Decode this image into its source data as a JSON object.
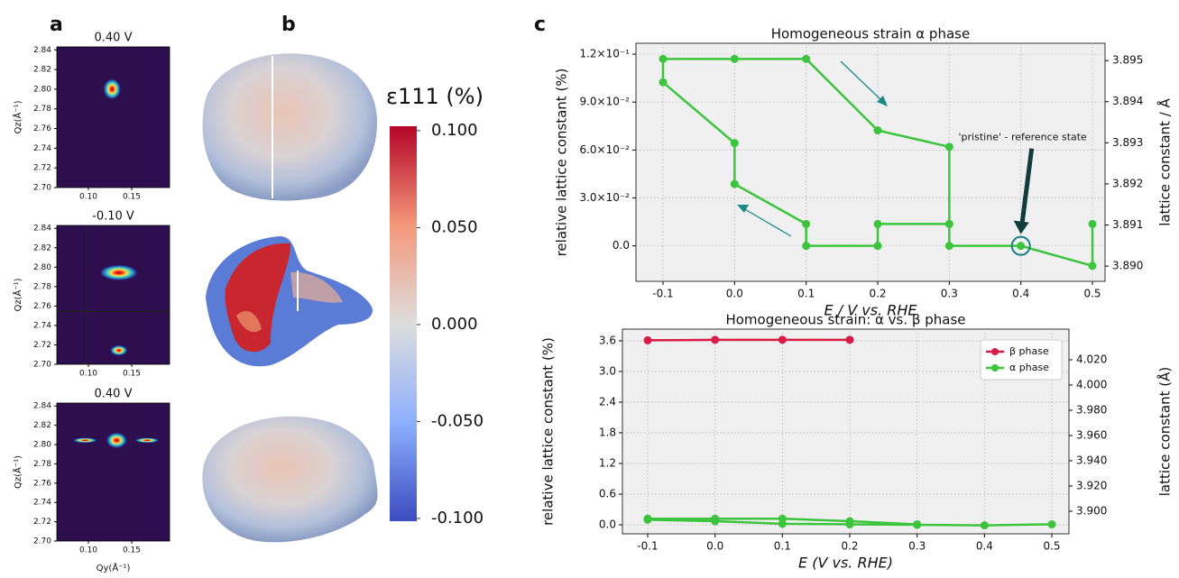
{
  "panel_labels": [
    "a",
    "b",
    "c"
  ],
  "chart_data": [
    {
      "type": "image",
      "title": "0.40 V",
      "ylabel": "Qz(Å⁻¹)",
      "xlim": [
        0.0635,
        0.1938
      ],
      "ylim": [
        2.7,
        2.843
      ],
      "xticks": [
        {
          "value": 0.1,
          "label": "0.10"
        },
        {
          "value": 0.15,
          "label": "0.15"
        }
      ],
      "yticks": [
        {
          "value": 2.7,
          "label": "2.70"
        },
        2.72,
        2.74,
        2.76,
        2.78,
        {
          "value": 2.8,
          "label": "2.80"
        },
        2.82,
        2.84
      ]
    },
    {
      "type": "image",
      "title": "-0.10 V",
      "ylabel": "Qz(Å⁻¹)",
      "xlim": [
        0.0635,
        0.1938
      ],
      "ylim": [
        2.7,
        2.843
      ],
      "xticks": [
        {
          "value": 0.1,
          "label": "0.10"
        },
        {
          "value": 0.15,
          "label": "0.15"
        }
      ],
      "yticks": [
        {
          "value": 2.7,
          "label": "2.70"
        },
        2.72,
        2.74,
        2.76,
        2.78,
        {
          "value": 2.8,
          "label": "2.80"
        },
        2.82,
        2.84
      ]
    },
    {
      "type": "image",
      "title": "0.40 V",
      "ylabel": "Qz(Å⁻¹)",
      "xlabel": "Qy(Å⁻¹)",
      "xlim": [
        0.0635,
        0.1938
      ],
      "ylim": [
        2.7,
        2.843
      ],
      "xticks": [
        {
          "value": 0.1,
          "label": "0.10"
        },
        {
          "value": 0.15,
          "label": "0.15"
        }
      ],
      "yticks": [
        {
          "value": 2.7,
          "label": "2.70"
        },
        2.72,
        2.74,
        2.76,
        2.78,
        {
          "value": 2.8,
          "label": "2.80"
        },
        2.82,
        2.84
      ]
    },
    {
      "type": "colorbar",
      "label": "ε111 (%)",
      "colormap": "coolwarm",
      "lim": [
        -0.1014,
        0.1023
      ],
      "ticks": [
        {
          "value": 0.1,
          "label": "0.100"
        },
        {
          "value": 0.05,
          "label": "0.050"
        },
        {
          "value": 0,
          "label": "0.000"
        },
        {
          "value": -0.05,
          "label": "-0.050"
        },
        {
          "value": -0.1,
          "label": "-0.100"
        }
      ]
    },
    {
      "type": "line",
      "title": "Homogeneous strain α phase",
      "xlabel": "E / V vs. RHE",
      "ylabel": "relative lattice constant (%)",
      "y2label": "lattice constant / Å",
      "annotation": "'pristine' - reference state",
      "grid": true,
      "xlim": [
        -0.1378,
        0.5176
      ],
      "ylim": [
        -0.0222,
        0.1268
      ],
      "y2lim": [
        3.88963,
        3.89542
      ],
      "xticks": [
        -0.1,
        {
          "value": 0,
          "label": "0.0"
        },
        0.1,
        0.2,
        0.3,
        0.4,
        0.5
      ],
      "yticks": [
        {
          "value": 0,
          "label": "0.0"
        },
        {
          "value": 0.03,
          "label": "3.0×10⁻²"
        },
        {
          "value": 0.06,
          "label": "6.0×10⁻²"
        },
        {
          "value": 0.09,
          "label": "9.0×10⁻²"
        },
        {
          "value": 0.12,
          "label": "1.2×10⁻¹"
        }
      ],
      "y2ticks": [
        {
          "value": 3.89,
          "label": "3.890"
        },
        3.891,
        3.892,
        3.893,
        3.894,
        3.895
      ],
      "series": [
        {
          "color": "#3cc43c",
          "x": [
            0.5,
            0.5,
            0.4,
            0.3,
            0.3,
            0.3,
            0.2,
            0.1,
            0.0,
            -0.1,
            -0.1,
            0.0,
            0.0,
            0.1,
            0.1,
            0.2,
            0.2,
            0.3
          ],
          "values": [
            0.0137,
            -0.0125,
            0,
            0,
            0.0137,
            0.062,
            0.0723,
            0.117,
            0.117,
            0.117,
            0.1024,
            0.0643,
            0.0387,
            0.0137,
            0,
            0,
            0.0137,
            0.0137
          ]
        }
      ]
    },
    {
      "type": "line",
      "title": "Homogeneous strain: α vs. β phase",
      "xlabel": "E (V vs. RHE)",
      "ylabel": "relative lattice constant (%)",
      "y2label": "lattice constant (Å)",
      "legend": "upper right",
      "grid": true,
      "xlim": [
        -0.1375,
        0.5254
      ],
      "ylim": [
        -0.176,
        3.829
      ],
      "y2lim": [
        3.8821,
        4.0443
      ],
      "xticks": [
        -0.1,
        {
          "value": 0,
          "label": "0.0"
        },
        0.1,
        0.2,
        0.3,
        0.4,
        0.5
      ],
      "yticks": [
        {
          "value": 0,
          "label": "0.0"
        },
        0.6,
        1.2,
        1.8,
        2.4,
        {
          "value": 3,
          "label": "3.0"
        },
        3.6
      ],
      "y2ticks": [
        {
          "value": 3.9,
          "label": "3.900"
        },
        {
          "value": 3.92,
          "label": "3.920"
        },
        {
          "value": 3.94,
          "label": "3.940"
        },
        {
          "value": 3.96,
          "label": "3.960"
        },
        {
          "value": 3.98,
          "label": "3.980"
        },
        {
          "value": 4,
          "label": "4.000"
        },
        {
          "value": 4.02,
          "label": "4.020"
        }
      ],
      "series": [
        {
          "name": "β phase",
          "color": "#d81b47",
          "x": [
            -0.1,
            0.0,
            0.1,
            0.2
          ],
          "values": [
            3.61,
            3.62,
            3.62,
            3.62
          ]
        },
        {
          "name": "α phase",
          "color": "#3cc43c",
          "x": [
            0.3,
            0.2,
            0.1,
            0.0,
            -0.1,
            -0.1,
            0.0,
            0.1,
            0.2,
            0.3,
            0.4,
            0.5
          ],
          "values": [
            0.01,
            0.07,
            0.12,
            0.12,
            0.12,
            0.1,
            0.07,
            0.02,
            0.01,
            0.0,
            -0.01,
            0.01
          ]
        }
      ]
    }
  ]
}
